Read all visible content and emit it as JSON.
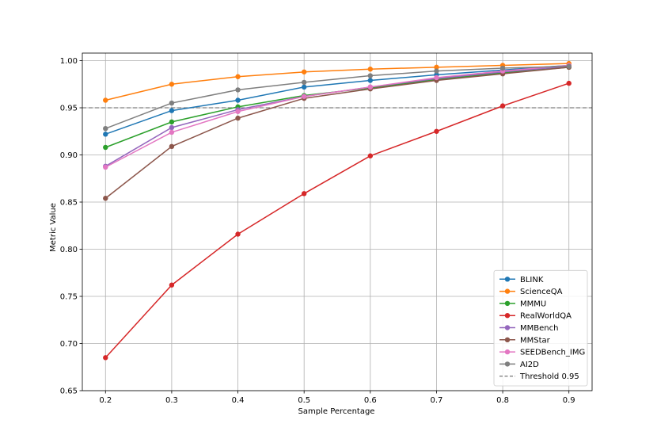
{
  "chart_data": {
    "type": "line",
    "title": "",
    "xlabel": "Sample Percentage",
    "ylabel": "Metric Value",
    "x": [
      0.2,
      0.3,
      0.4,
      0.5,
      0.6,
      0.7,
      0.8,
      0.9
    ],
    "x_tick_labels": [
      "0.2",
      "0.3",
      "0.4",
      "0.5",
      "0.6",
      "0.7",
      "0.8",
      "0.9"
    ],
    "y_ticks": [
      0.65,
      0.7,
      0.75,
      0.8,
      0.85,
      0.9,
      0.95,
      1.0
    ],
    "y_tick_labels": [
      "0.65",
      "0.70",
      "0.75",
      "0.80",
      "0.85",
      "0.90",
      "0.95",
      "1.00"
    ],
    "xlim": [
      0.165,
      0.935
    ],
    "ylim": [
      0.65,
      1.008
    ],
    "grid": true,
    "legend_position": "lower-right",
    "series": [
      {
        "name": "BLINK",
        "color": "#1f77b4",
        "values": [
          0.922,
          0.947,
          0.958,
          0.972,
          0.979,
          0.985,
          0.99,
          0.995
        ]
      },
      {
        "name": "ScienceQA",
        "color": "#ff7f0e",
        "values": [
          0.958,
          0.975,
          0.983,
          0.988,
          0.991,
          0.993,
          0.995,
          0.997
        ]
      },
      {
        "name": "MMMU",
        "color": "#2ca02c",
        "values": [
          0.908,
          0.935,
          0.951,
          0.963,
          0.971,
          0.98,
          0.987,
          0.993
        ]
      },
      {
        "name": "RealWorldQA",
        "color": "#d62728",
        "values": [
          0.685,
          0.762,
          0.816,
          0.859,
          0.899,
          0.925,
          0.952,
          0.976
        ]
      },
      {
        "name": "MMBench",
        "color": "#9467bd",
        "values": [
          0.888,
          0.929,
          0.948,
          0.962,
          0.972,
          0.981,
          0.988,
          0.994
        ]
      },
      {
        "name": "MMStar",
        "color": "#8c564b",
        "values": [
          0.854,
          0.909,
          0.939,
          0.96,
          0.97,
          0.979,
          0.986,
          0.993
        ]
      },
      {
        "name": "SEEDBench_IMG",
        "color": "#e377c2",
        "values": [
          0.887,
          0.924,
          0.946,
          0.962,
          0.972,
          0.982,
          0.989,
          0.995
        ]
      },
      {
        "name": "AI2D",
        "color": "#7f7f7f",
        "values": [
          0.928,
          0.955,
          0.969,
          0.977,
          0.984,
          0.989,
          0.992,
          0.994
        ]
      }
    ],
    "reference_line": {
      "name": "Threshold 0.95",
      "value": 0.95,
      "color": "#808080",
      "style": "dashed"
    }
  }
}
